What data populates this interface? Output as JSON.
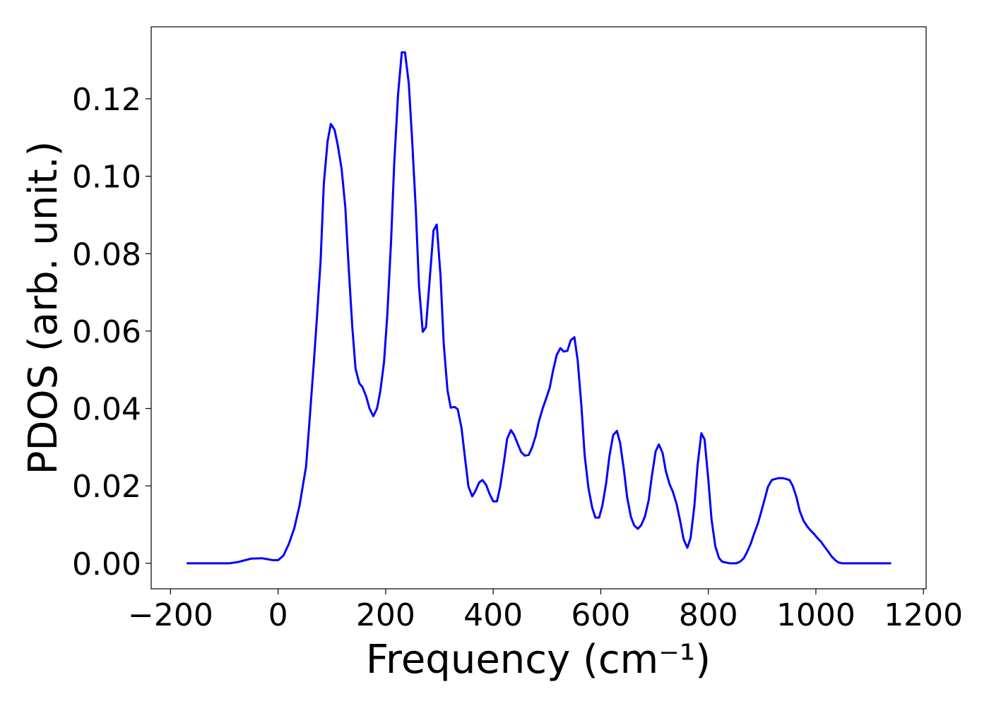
{
  "chart_data": {
    "type": "line",
    "xlabel": "Frequency (cm⁻¹)",
    "ylabel": "PDOS (arb. unit.)",
    "color": "#0000ff",
    "x": [
      -170,
      -90,
      -75,
      -50,
      -30,
      -10,
      0,
      10,
      20,
      30,
      40,
      52,
      58,
      66,
      72,
      79,
      85,
      92,
      98,
      105,
      111,
      118,
      125,
      131,
      138,
      144,
      151,
      157,
      164,
      170,
      177,
      184,
      190,
      197,
      203,
      210,
      216,
      223,
      230,
      236,
      243,
      249,
      256,
      262,
      269,
      275,
      282,
      289,
      295,
      302,
      308,
      315,
      321,
      328,
      334,
      341,
      348,
      354,
      361,
      367,
      374,
      380,
      387,
      393,
      400,
      407,
      413,
      420,
      426,
      433,
      439,
      446,
      452,
      459,
      466,
      472,
      479,
      485,
      492,
      498,
      505,
      511,
      518,
      525,
      531,
      538,
      544,
      551,
      557,
      564,
      570,
      577,
      584,
      590,
      597,
      603,
      610,
      616,
      623,
      630,
      636,
      643,
      649,
      656,
      662,
      669,
      675,
      682,
      689,
      695,
      702,
      708,
      715,
      721,
      728,
      734,
      741,
      748,
      754,
      761,
      767,
      774,
      780,
      787,
      793,
      800,
      806,
      813,
      820,
      826,
      839,
      852,
      859,
      866,
      872,
      879,
      885,
      892,
      898,
      905,
      911,
      918,
      925,
      931,
      938,
      944,
      951,
      957,
      964,
      970,
      977,
      984,
      990,
      997,
      1003,
      1010,
      1016,
      1023,
      1029,
      1036,
      1042,
      1049,
      1140
    ],
    "values": [
      0,
      0,
      0.0003,
      0.0012,
      0.0013,
      0.0008,
      0.0008,
      0.002,
      0.005,
      0.009,
      0.015,
      0.025,
      0.036,
      0.051,
      0.063,
      0.078,
      0.098,
      0.109,
      0.1135,
      0.112,
      0.108,
      0.102,
      0.092,
      0.077,
      0.061,
      0.0503,
      0.0465,
      0.0455,
      0.043,
      0.04,
      0.038,
      0.04,
      0.0444,
      0.052,
      0.064,
      0.083,
      0.1035,
      0.121,
      0.132,
      0.132,
      0.124,
      0.11,
      0.0916,
      0.0716,
      0.0598,
      0.061,
      0.0735,
      0.086,
      0.0875,
      0.0744,
      0.0567,
      0.0447,
      0.0402,
      0.0404,
      0.0398,
      0.035,
      0.0267,
      0.0198,
      0.0173,
      0.0187,
      0.0209,
      0.0215,
      0.0202,
      0.018,
      0.016,
      0.016,
      0.0198,
      0.0262,
      0.0322,
      0.0344,
      0.0331,
      0.0307,
      0.0287,
      0.0278,
      0.028,
      0.0298,
      0.0329,
      0.0367,
      0.04,
      0.0424,
      0.0453,
      0.0496,
      0.0538,
      0.0556,
      0.0547,
      0.0549,
      0.0576,
      0.0584,
      0.0525,
      0.0407,
      0.028,
      0.0195,
      0.0144,
      0.0118,
      0.0118,
      0.0149,
      0.0207,
      0.0276,
      0.0331,
      0.0342,
      0.0311,
      0.0242,
      0.0171,
      0.012,
      0.0098,
      0.0089,
      0.0098,
      0.012,
      0.0162,
      0.0225,
      0.0289,
      0.0307,
      0.0285,
      0.0238,
      0.0204,
      0.0185,
      0.0153,
      0.0107,
      0.0062,
      0.004,
      0.0065,
      0.0147,
      0.0253,
      0.0336,
      0.032,
      0.0216,
      0.0113,
      0.0044,
      0.0013,
      0.0004,
      0,
      0,
      0.0004,
      0.0013,
      0.0029,
      0.0051,
      0.0076,
      0.0102,
      0.0131,
      0.0167,
      0.0198,
      0.0215,
      0.0218,
      0.022,
      0.022,
      0.0218,
      0.0215,
      0.02,
      0.017,
      0.0135,
      0.011,
      0.0095,
      0.0085,
      0.0075,
      0.0065,
      0.0055,
      0.0043,
      0.003,
      0.0018,
      0.0008,
      0.0002,
      0,
      0
    ],
    "xlim": [
      -236,
      1205
    ],
    "ylim": [
      -0.0066,
      0.1386
    ],
    "xticks": [
      {
        "value": -200,
        "label": "−200"
      },
      0,
      200,
      400,
      600,
      800,
      1000,
      1200
    ],
    "yticks": [
      {
        "value": 0,
        "label": "0.00"
      },
      {
        "value": 0.02,
        "label": "0.02"
      },
      {
        "value": 0.04,
        "label": "0.04"
      },
      {
        "value": 0.06,
        "label": "0.06"
      },
      {
        "value": 0.08,
        "label": "0.08"
      },
      {
        "value": 0.1,
        "label": "0.10"
      },
      {
        "value": 0.12,
        "label": "0.12"
      }
    ],
    "grid": false
  }
}
